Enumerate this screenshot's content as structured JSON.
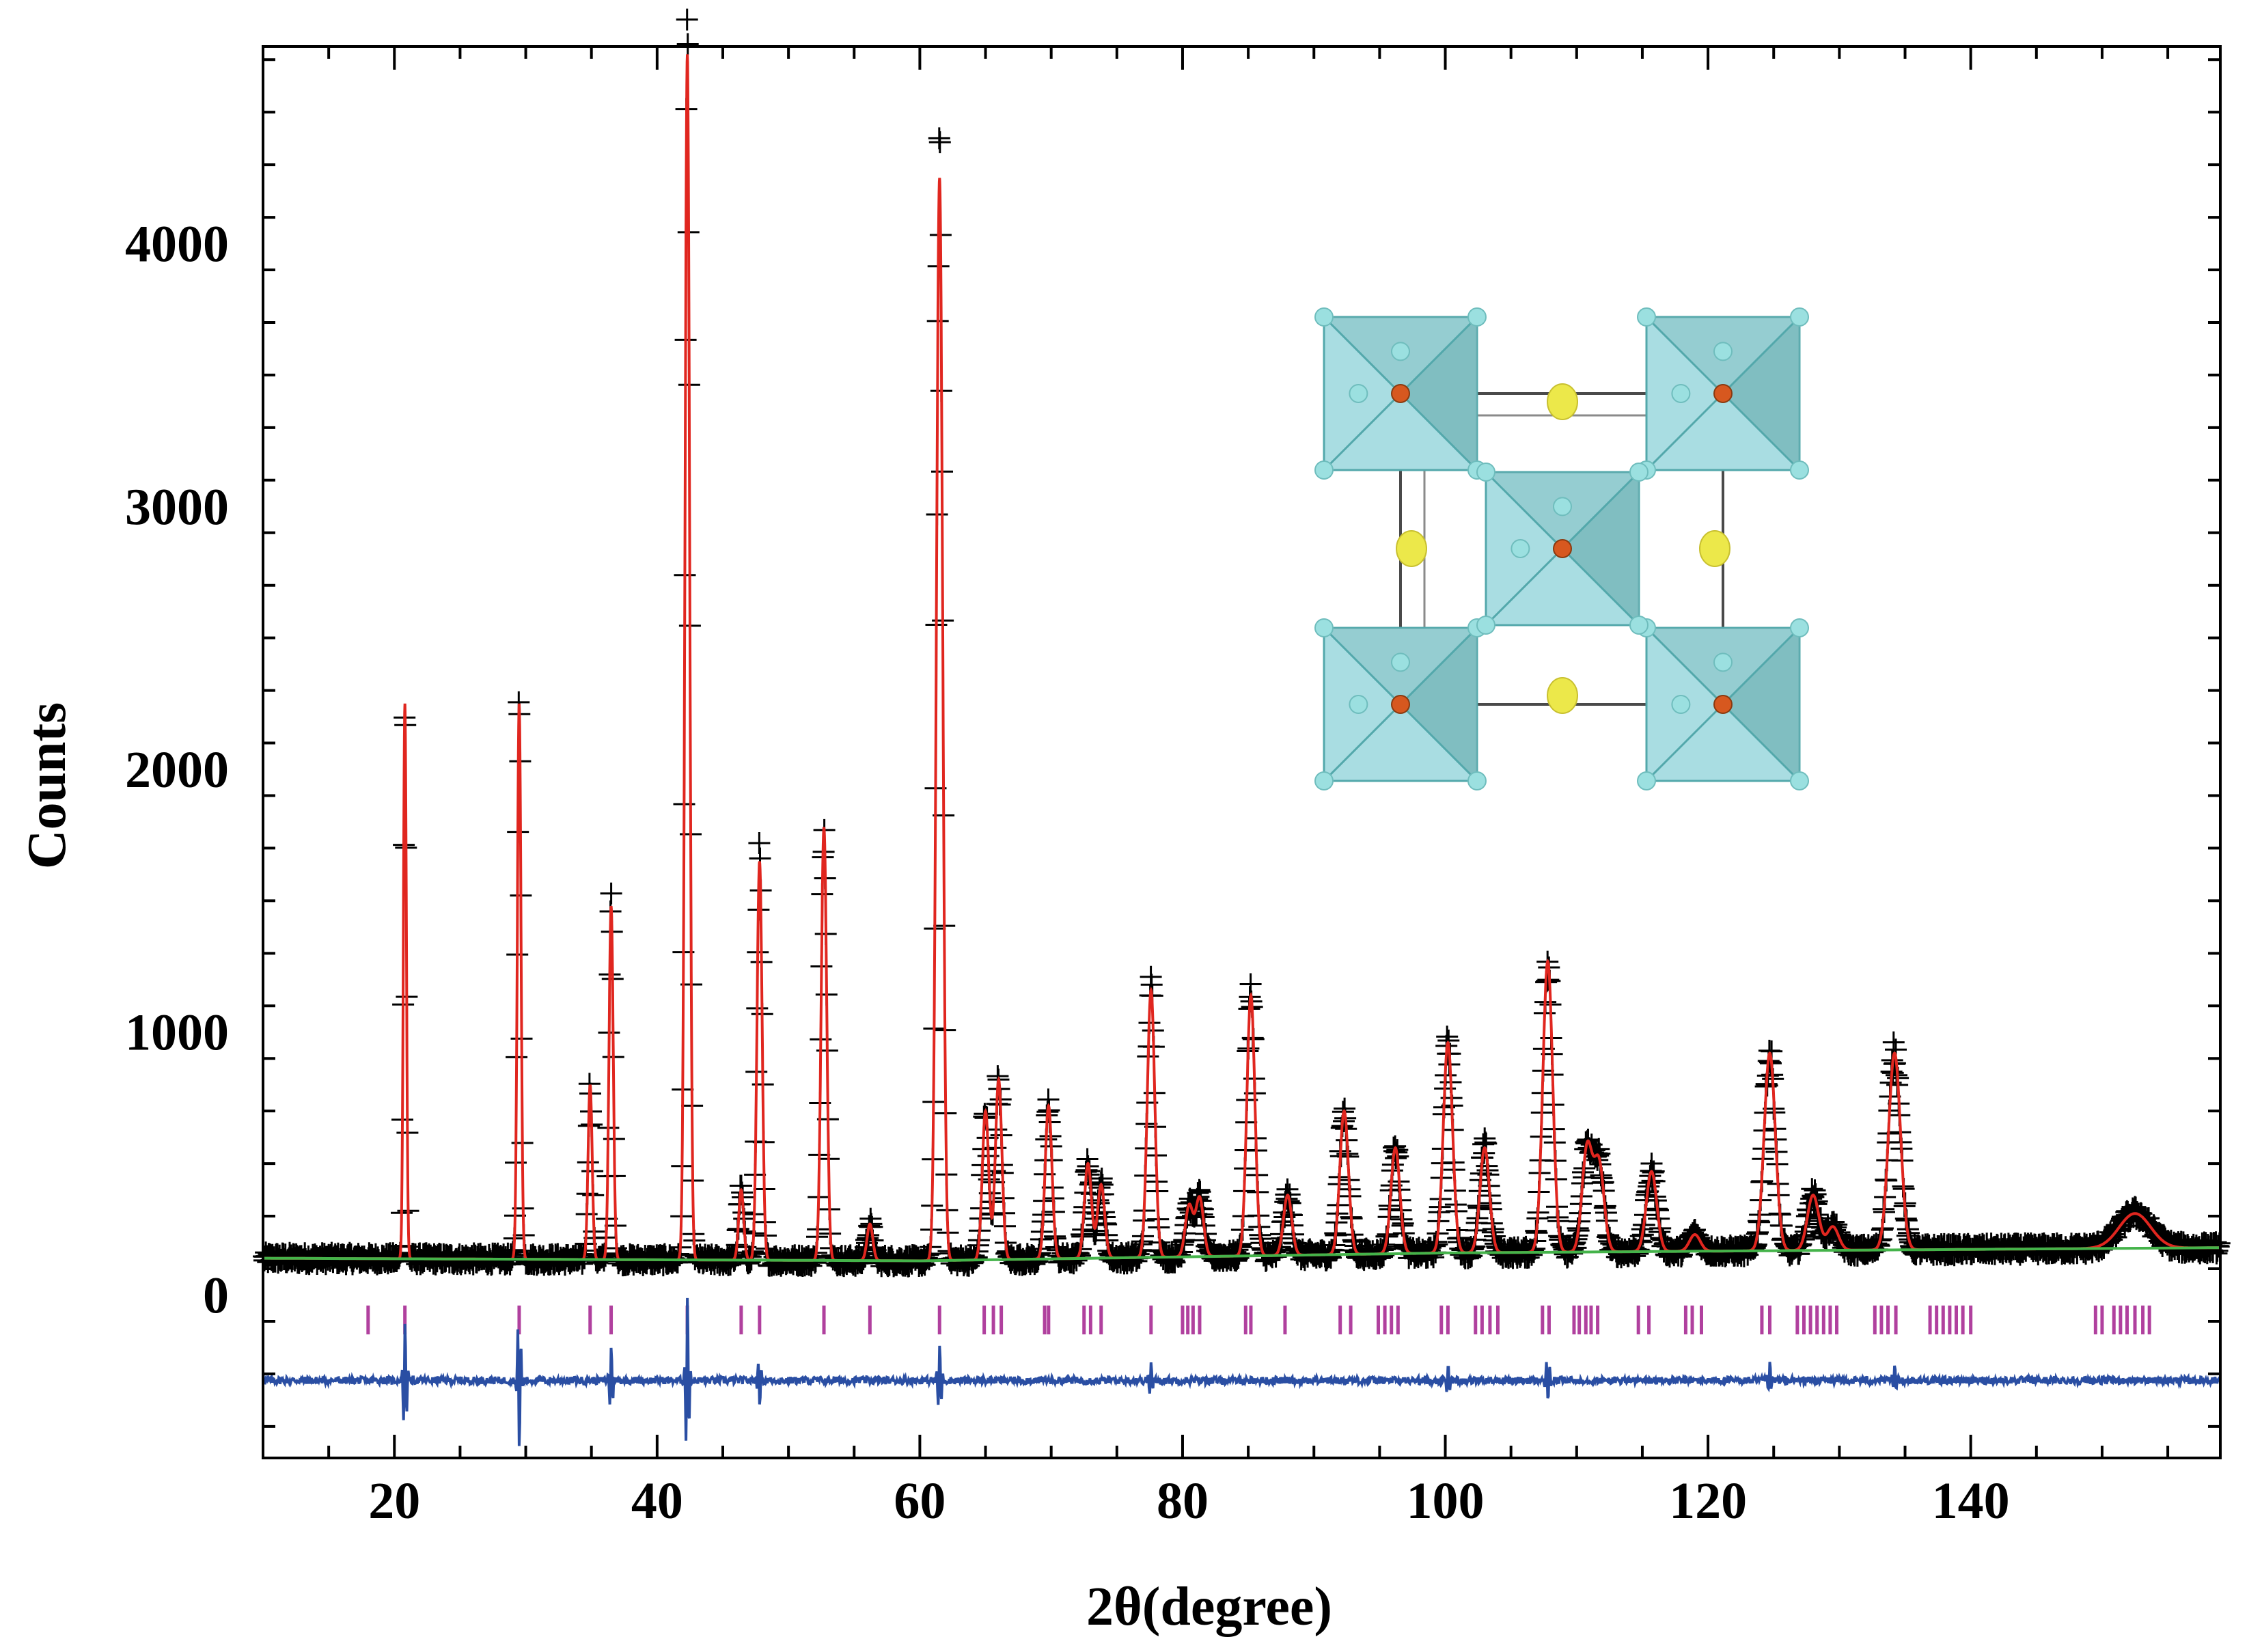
{
  "chart_data": {
    "type": "line",
    "title": "",
    "xlabel": "2θ(degree)",
    "ylabel": "Counts",
    "xlim": [
      10,
      159
    ],
    "ylim": [
      -620,
      4750
    ],
    "x_ticks": [
      20,
      40,
      60,
      80,
      100,
      120,
      140
    ],
    "y_ticks": [
      0,
      1000,
      2000,
      3000,
      4000
    ],
    "grid": false,
    "legend": "none",
    "series": [
      {
        "name": "Observed",
        "marker": "+",
        "color": "#000000"
      },
      {
        "name": "Calculated",
        "color": "#e0261f"
      },
      {
        "name": "Background",
        "color": "#44b34a"
      },
      {
        "name": "Bragg positions",
        "color": "#b0409e"
      },
      {
        "name": "Difference",
        "color": "#2a4ea3"
      }
    ],
    "background": [
      [
        10,
        140
      ],
      [
        60,
        130
      ],
      [
        100,
        160
      ],
      [
        159,
        180
      ]
    ],
    "peaks": [
      {
        "x": 20.8,
        "y": 2250
      },
      {
        "x": 29.5,
        "y": 2250
      },
      {
        "x": 34.9,
        "y": 800
      },
      {
        "x": 36.5,
        "y": 1480
      },
      {
        "x": 42.3,
        "y": 4720
      },
      {
        "x": 46.4,
        "y": 400
      },
      {
        "x": 47.8,
        "y": 1650
      },
      {
        "x": 52.7,
        "y": 1780
      },
      {
        "x": 56.2,
        "y": 270
      },
      {
        "x": 61.5,
        "y": 4250
      },
      {
        "x": 65.0,
        "y": 700
      },
      {
        "x": 66.0,
        "y": 820
      },
      {
        "x": 69.8,
        "y": 720
      },
      {
        "x": 72.8,
        "y": 500
      },
      {
        "x": 73.8,
        "y": 420
      },
      {
        "x": 77.6,
        "y": 1160
      },
      {
        "x": 80.5,
        "y": 340
      },
      {
        "x": 81.3,
        "y": 370
      },
      {
        "x": 85.2,
        "y": 1140
      },
      {
        "x": 88.0,
        "y": 380
      },
      {
        "x": 92.3,
        "y": 700
      },
      {
        "x": 96.2,
        "y": 560
      },
      {
        "x": 100.2,
        "y": 960
      },
      {
        "x": 103.0,
        "y": 560
      },
      {
        "x": 107.8,
        "y": 1270
      },
      {
        "x": 110.8,
        "y": 560
      },
      {
        "x": 111.7,
        "y": 500
      },
      {
        "x": 115.7,
        "y": 470
      },
      {
        "x": 119.0,
        "y": 230
      },
      {
        "x": 124.7,
        "y": 920
      },
      {
        "x": 128.0,
        "y": 380
      },
      {
        "x": 129.5,
        "y": 260
      },
      {
        "x": 134.2,
        "y": 920
      },
      {
        "x": 152.5,
        "y": 310
      }
    ],
    "bragg_positions": [
      18.0,
      20.8,
      29.5,
      34.9,
      36.5,
      42.3,
      46.4,
      47.8,
      52.7,
      56.2,
      61.5,
      64.9,
      65.6,
      66.2,
      69.5,
      69.8,
      72.5,
      73.0,
      73.8,
      77.6,
      80.0,
      80.4,
      80.8,
      81.3,
      84.8,
      85.2,
      87.8,
      92.0,
      92.8,
      94.9,
      95.4,
      95.9,
      96.4,
      99.7,
      100.2,
      102.3,
      102.8,
      103.4,
      104.0,
      107.4,
      107.9,
      109.8,
      110.2,
      110.7,
      111.1,
      111.6,
      114.7,
      115.5,
      118.3,
      118.8,
      119.5,
      124.1,
      124.7,
      126.8,
      127.3,
      127.8,
      128.3,
      128.8,
      129.3,
      129.8,
      132.7,
      133.2,
      133.7,
      134.3,
      136.9,
      137.4,
      137.9,
      138.4,
      138.9,
      139.4,
      140.0,
      149.5,
      150.0,
      150.9,
      151.4,
      151.9,
      152.5,
      153.1,
      153.6
    ],
    "difference_baseline": -325,
    "difference_spikes": [
      {
        "x": 20.8,
        "d": 170
      },
      {
        "x": 29.5,
        "d": -190
      },
      {
        "x": 36.5,
        "d": 90
      },
      {
        "x": 42.3,
        "d": 230
      },
      {
        "x": 47.8,
        "d": -80
      },
      {
        "x": 61.5,
        "d": 100
      },
      {
        "x": 77.6,
        "d": 50
      },
      {
        "x": 100.2,
        "d": 45
      },
      {
        "x": 107.8,
        "d": -60
      },
      {
        "x": 124.7,
        "d": 45
      },
      {
        "x": 134.2,
        "d": 40
      }
    ]
  },
  "inset": {
    "name": "crystal-structure",
    "face_color": "#a9dde2",
    "face_dark": "#6fb0b3",
    "edge_color": "#53a8ab",
    "center_atom_color": "#d7581f",
    "corner_atom_color": "#9be0e0",
    "a_site_color": "#ece84a"
  }
}
